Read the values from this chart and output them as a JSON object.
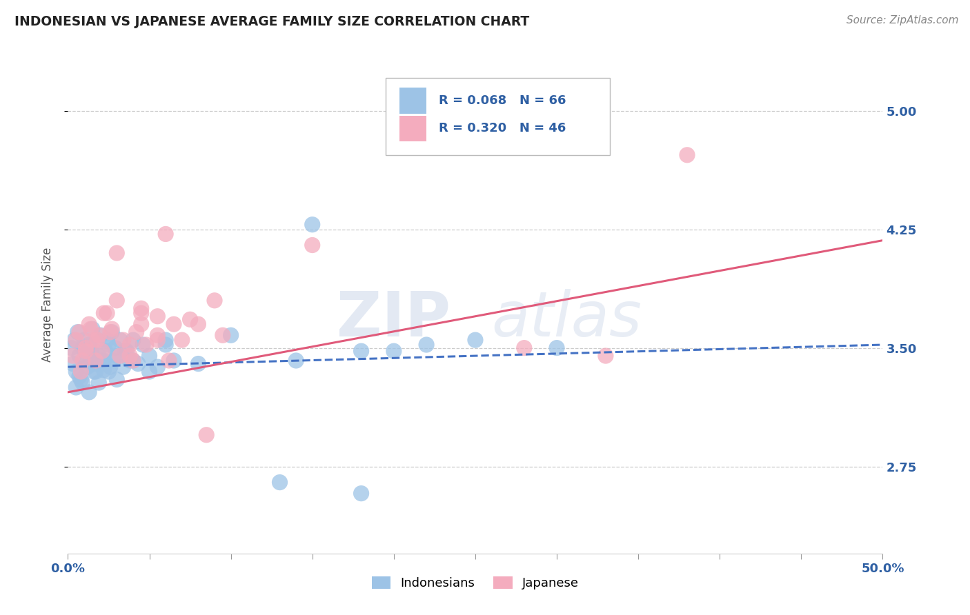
{
  "title": "INDONESIAN VS JAPANESE AVERAGE FAMILY SIZE CORRELATION CHART",
  "source": "Source: ZipAtlas.com",
  "ylabel": "Average Family Size",
  "yticks": [
    2.75,
    3.5,
    4.25,
    5.0
  ],
  "xlim": [
    0.0,
    0.5
  ],
  "ylim": [
    2.2,
    5.35
  ],
  "indonesian_color": "#9dc3e6",
  "japanese_color": "#f4acbe",
  "indonesian_line_color": "#4472c4",
  "japanese_line_color": "#e05a7a",
  "axis_label_color": "#2e5fa3",
  "legend_r1": "R = 0.068   N = 66",
  "legend_r2": "R = 0.320   N = 46",
  "indo_line": [
    0.0,
    0.5,
    3.38,
    3.52
  ],
  "jap_line": [
    0.0,
    0.5,
    3.22,
    4.18
  ],
  "indo_x": [
    0.002,
    0.003,
    0.004,
    0.005,
    0.006,
    0.007,
    0.008,
    0.009,
    0.01,
    0.011,
    0.012,
    0.013,
    0.014,
    0.015,
    0.016,
    0.017,
    0.018,
    0.019,
    0.02,
    0.021,
    0.022,
    0.023,
    0.024,
    0.025,
    0.026,
    0.027,
    0.028,
    0.029,
    0.03,
    0.032,
    0.034,
    0.036,
    0.038,
    0.04,
    0.043,
    0.046,
    0.05,
    0.055,
    0.06,
    0.065,
    0.005,
    0.007,
    0.009,
    0.011,
    0.013,
    0.015,
    0.017,
    0.019,
    0.022,
    0.025,
    0.03,
    0.035,
    0.04,
    0.05,
    0.06,
    0.08,
    0.1,
    0.14,
    0.18,
    0.22,
    0.15,
    0.2,
    0.3,
    0.13,
    0.18,
    0.25
  ],
  "indo_y": [
    3.5,
    3.4,
    3.55,
    3.35,
    3.6,
    3.45,
    3.3,
    3.5,
    3.55,
    3.42,
    3.38,
    3.52,
    3.48,
    3.62,
    3.35,
    3.4,
    3.55,
    3.45,
    3.58,
    3.42,
    3.36,
    3.48,
    3.55,
    3.52,
    3.38,
    3.6,
    3.42,
    3.5,
    3.45,
    3.55,
    3.38,
    3.48,
    3.42,
    3.55,
    3.4,
    3.52,
    3.45,
    3.38,
    3.55,
    3.42,
    3.25,
    3.32,
    3.28,
    3.38,
    3.22,
    3.45,
    3.35,
    3.28,
    3.42,
    3.35,
    3.3,
    3.48,
    3.42,
    3.35,
    3.52,
    3.4,
    3.58,
    3.42,
    3.48,
    3.52,
    4.28,
    3.48,
    3.5,
    2.65,
    2.58,
    3.55
  ],
  "jap_x": [
    0.003,
    0.005,
    0.007,
    0.009,
    0.011,
    0.013,
    0.015,
    0.017,
    0.019,
    0.021,
    0.024,
    0.027,
    0.03,
    0.034,
    0.038,
    0.042,
    0.048,
    0.055,
    0.062,
    0.07,
    0.008,
    0.011,
    0.014,
    0.018,
    0.022,
    0.026,
    0.032,
    0.038,
    0.045,
    0.055,
    0.03,
    0.045,
    0.06,
    0.08,
    0.04,
    0.055,
    0.075,
    0.095,
    0.045,
    0.065,
    0.09,
    0.15,
    0.085,
    0.38,
    0.28,
    0.33
  ],
  "jap_y": [
    3.45,
    3.55,
    3.6,
    3.42,
    3.5,
    3.65,
    3.55,
    3.42,
    3.58,
    3.48,
    3.72,
    3.62,
    3.8,
    3.55,
    3.45,
    3.6,
    3.52,
    3.7,
    3.42,
    3.55,
    3.35,
    3.48,
    3.62,
    3.55,
    3.72,
    3.6,
    3.45,
    3.52,
    3.65,
    3.58,
    4.1,
    3.75,
    4.22,
    3.65,
    3.42,
    3.55,
    3.68,
    3.58,
    3.72,
    3.65,
    3.8,
    4.15,
    2.95,
    4.72,
    3.5,
    3.45
  ]
}
